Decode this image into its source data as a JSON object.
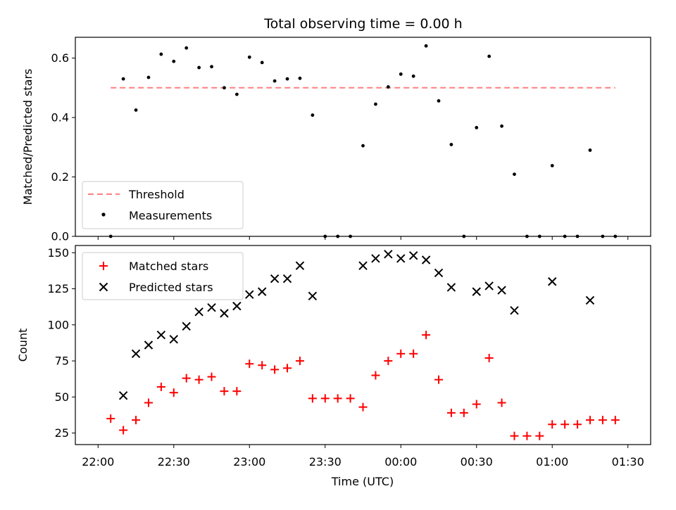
{
  "title": "Total observing time = 0.00 h",
  "chart_data": [
    {
      "type": "scatter",
      "panel": "top",
      "ylabel": "Matched/Predicted stars",
      "ylim": [
        0,
        0.67
      ],
      "yticks": [
        0.0,
        0.2,
        0.4,
        0.6
      ],
      "ytick_labels": [
        "0.0",
        "0.2",
        "0.4",
        "0.6"
      ],
      "x_time_labels": [
        "22:05",
        "22:10",
        "22:15",
        "22:20",
        "22:25",
        "22:30",
        "22:35",
        "22:40",
        "22:45",
        "22:50",
        "22:55",
        "23:00",
        "23:05",
        "23:10",
        "23:15",
        "23:20",
        "23:25",
        "23:30",
        "23:35",
        "23:40",
        "23:45",
        "23:50",
        "23:55",
        "00:00",
        "00:05",
        "00:10",
        "00:15",
        "00:20",
        "00:25",
        "00:30",
        "00:35",
        "00:40",
        "00:45",
        "00:50",
        "00:55",
        "01:00",
        "01:05",
        "01:10",
        "01:15",
        "01:20",
        "01:25"
      ],
      "threshold": {
        "name": "Threshold",
        "value": 0.5,
        "x_range": [
          "22:05",
          "01:25"
        ],
        "color": "#ff7f7f"
      },
      "series": [
        {
          "name": "Measurements",
          "color": "#000000",
          "values": [
            0.0,
            0.53,
            0.425,
            0.535,
            0.613,
            0.589,
            0.634,
            0.568,
            0.571,
            0.5,
            0.478,
            0.603,
            0.585,
            0.523,
            0.53,
            0.532,
            0.408,
            0.0,
            0.0,
            0.0,
            0.305,
            0.445,
            0.503,
            0.546,
            0.539,
            0.641,
            0.456,
            0.309,
            0.0,
            0.366,
            0.606,
            0.371,
            0.209,
            0.0,
            0.0,
            0.238,
            0.0,
            0.0,
            0.29,
            0.0,
            0.0
          ]
        }
      ],
      "legend": {
        "placement": "lower-left",
        "entries": [
          "Threshold",
          "Measurements"
        ]
      },
      "grid": false
    },
    {
      "type": "scatter",
      "panel": "bottom",
      "ylabel": "Count",
      "xlabel": "Time (UTC)",
      "ylim": [
        17,
        155
      ],
      "yticks": [
        25,
        50,
        75,
        100,
        125,
        150
      ],
      "ytick_labels": [
        "25",
        "50",
        "75",
        "100",
        "125",
        "150"
      ],
      "xlim": [
        "22:00",
        "01:30"
      ],
      "xtick_labels": [
        "22:00",
        "22:30",
        "23:00",
        "23:30",
        "00:00",
        "00:30",
        "01:00",
        "01:30"
      ],
      "series": [
        {
          "name": "Matched stars",
          "marker": "plus",
          "color": "#ff0000",
          "x": [
            "22:05",
            "22:10",
            "22:15",
            "22:20",
            "22:25",
            "22:30",
            "22:35",
            "22:40",
            "22:45",
            "22:50",
            "22:55",
            "23:00",
            "23:05",
            "23:10",
            "23:15",
            "23:20",
            "23:25",
            "23:30",
            "23:35",
            "23:40",
            "23:45",
            "23:50",
            "23:55",
            "00:00",
            "00:05",
            "00:10",
            "00:15",
            "00:20",
            "00:25",
            "00:30",
            "00:35",
            "00:40",
            "00:45",
            "00:50",
            "00:55",
            "01:00",
            "01:05",
            "01:10",
            "01:15",
            "01:20",
            "01:25"
          ],
          "values": [
            35,
            27,
            34,
            46,
            57,
            53,
            63,
            62,
            64,
            54,
            54,
            73,
            72,
            69,
            70,
            75,
            49,
            49,
            49,
            49,
            43,
            65,
            75,
            80,
            80,
            93,
            62,
            39,
            39,
            45,
            77,
            46,
            23,
            23,
            23,
            31,
            31,
            31,
            34,
            34,
            34
          ]
        },
        {
          "name": "Predicted stars",
          "marker": "x",
          "color": "#000000",
          "x": [
            "22:10",
            "22:15",
            "22:20",
            "22:25",
            "22:30",
            "22:35",
            "22:40",
            "22:45",
            "22:50",
            "22:55",
            "23:00",
            "23:05",
            "23:10",
            "23:15",
            "23:20",
            "23:25",
            "23:45",
            "23:50",
            "23:55",
            "00:00",
            "00:05",
            "00:10",
            "00:15",
            "00:20",
            "00:30",
            "00:35",
            "00:40",
            "00:45",
            "01:00",
            "01:15"
          ],
          "values": [
            51,
            80,
            86,
            93,
            90,
            99,
            109,
            112,
            108,
            113,
            121,
            123,
            132,
            132,
            141,
            120,
            141,
            146,
            149,
            146,
            148,
            145,
            136,
            126,
            123,
            127,
            124,
            110,
            130,
            117
          ]
        }
      ],
      "legend": {
        "placement": "upper-left",
        "entries": [
          "Matched stars",
          "Predicted stars"
        ]
      },
      "grid": false
    }
  ]
}
